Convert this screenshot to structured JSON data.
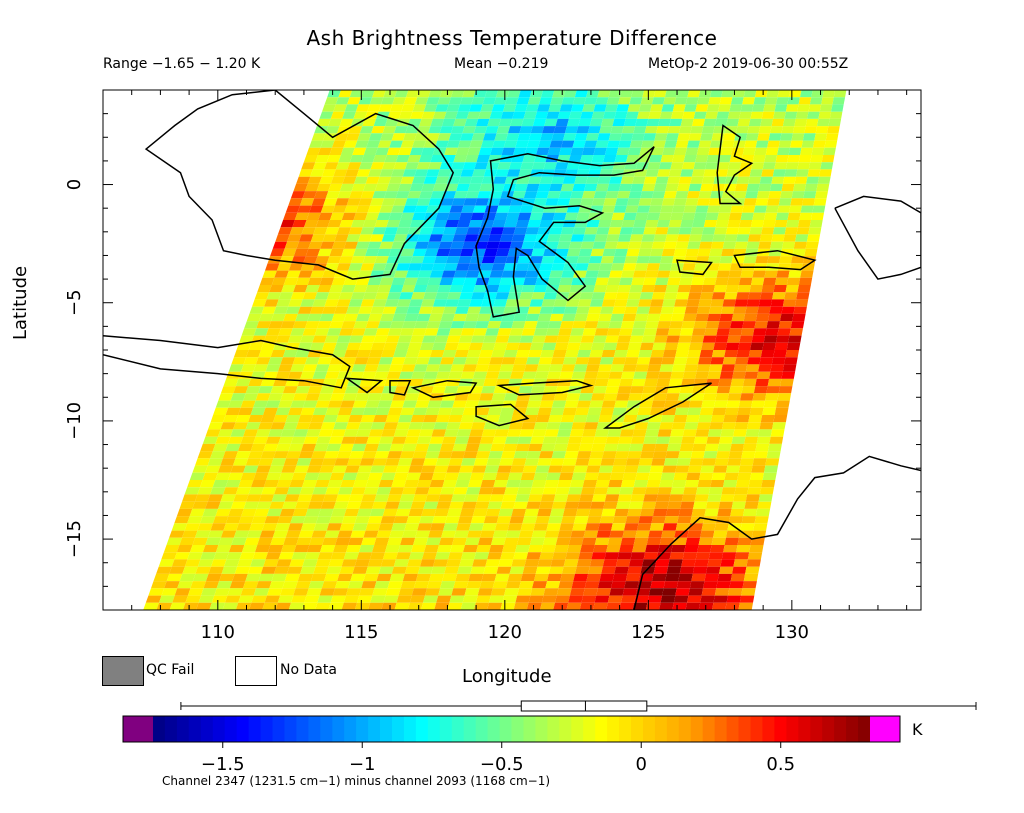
{
  "header": {
    "title": "Ash Brightness Temperature Difference",
    "range": "Range −1.65 − 1.20 K",
    "mean": "Mean −0.219",
    "instrument": "MetOp-2 2019-06-30 00:55Z"
  },
  "legend": {
    "qc_fail": "QC Fail",
    "no_data": "No Data",
    "qc_fail_color": "#808080",
    "no_data_color": "#ffffff"
  },
  "colorbar": {
    "unit": "K",
    "ticks": [
      "−1.5",
      "−1",
      "−0.5",
      "0",
      "0.5"
    ],
    "footnote": "Channel 2347 (1231.5 cm−1) minus channel 2093 (1168 cm−1)",
    "min_color": "#800080",
    "max_color": "#ff00ff"
  },
  "chart_data": {
    "type": "heatmap",
    "title": "Ash Brightness Temperature Difference",
    "xlabel": "Longitude",
    "ylabel": "Latitude",
    "xlim": [
      106,
      134.5
    ],
    "ylim": [
      -18,
      4
    ],
    "x_ticks": [
      "110",
      "115",
      "120",
      "125",
      "130"
    ],
    "y_ticks": [
      "0",
      "−5",
      "−10",
      "−15"
    ],
    "color_range": [
      -1.75,
      0.82
    ],
    "value_range": [
      -1.65,
      1.2
    ],
    "mean": -0.219,
    "boxplot": {
      "min": -1.65,
      "q1": -0.43,
      "median": -0.2,
      "q3": 0.02,
      "max": 1.2
    },
    "swath_corners_lonlat": [
      [
        113.9,
        4
      ],
      [
        131.9,
        4
      ],
      [
        128.6,
        -18
      ],
      [
        107.4,
        -18
      ]
    ],
    "regions": [
      {
        "name": "blue-core",
        "lon": 119.2,
        "lat": -2.5,
        "value": -1.3
      },
      {
        "name": "blue-north",
        "lon": 121.5,
        "lat": 2.0,
        "value": -0.9
      },
      {
        "name": "red-southeast",
        "lon": 125.5,
        "lat": -17.0,
        "value": 0.7
      },
      {
        "name": "red-east",
        "lon": 129.5,
        "lat": -6.5,
        "value": 0.55
      },
      {
        "name": "red-west",
        "lon": 111.5,
        "lat": -1.5,
        "value": 0.45
      }
    ],
    "colors": [
      "#000080",
      "#0000ff",
      "#0080ff",
      "#00ffff",
      "#80ff80",
      "#ffff00",
      "#ffa000",
      "#ff0000",
      "#800000"
    ]
  }
}
